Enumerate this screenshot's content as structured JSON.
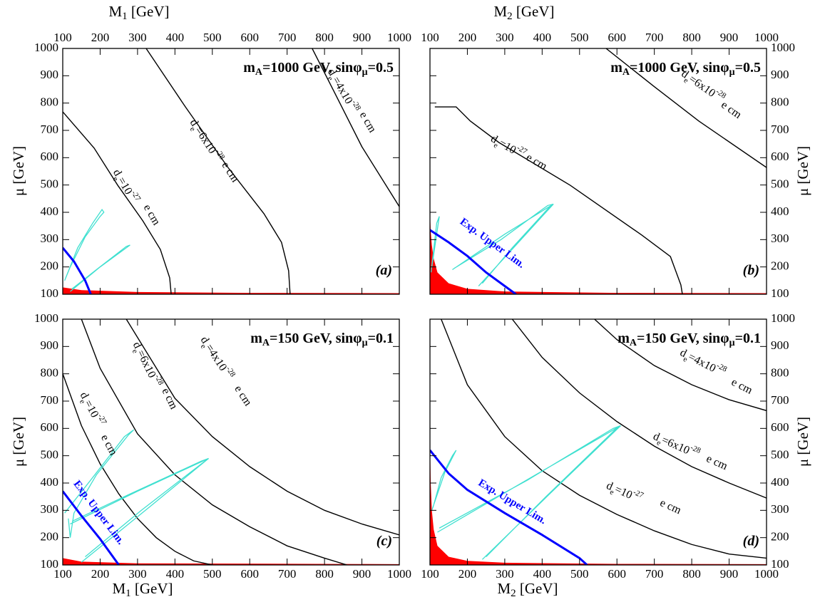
{
  "chart_data": [
    {
      "type": "line",
      "header": [
        "m",
        "A",
        "=1000 GeV, sinφ",
        "μ",
        "=0.5"
      ],
      "tag": "(a)",
      "xlabel": [
        "M",
        "1",
        "  [GeV]"
      ],
      "ylabel": "μ  [GeV]",
      "x_axis": "top",
      "y_axis": "left",
      "xlim": [
        100,
        1000
      ],
      "ylim": [
        100,
        1000
      ],
      "xticks": [
        100,
        200,
        300,
        400,
        500,
        600,
        700,
        800,
        900,
        1000
      ],
      "yticks": [
        100,
        200,
        300,
        400,
        500,
        600,
        700,
        800,
        900,
        1000
      ],
      "series": [
        {
          "color": "#ff0000",
          "fill": true,
          "x": [
            100,
            150,
            300,
            600,
            1000
          ],
          "values": [
            125,
            115,
            108,
            105,
            104
          ]
        },
        {
          "color": "#000000",
          "x": [
            100,
            184,
            247,
            314,
            361,
            386,
            390
          ],
          "values": [
            768,
            635,
            499,
            369,
            264,
            160,
            100
          ]
        },
        {
          "color": "#000000",
          "x": [
            323,
            428,
            542,
            638,
            685,
            704,
            708
          ],
          "values": [
            1000,
            786,
            564,
            395,
            290,
            186,
            100
          ]
        },
        {
          "color": "#000000",
          "x": [
            767,
            830,
            900,
            1000
          ],
          "values": [
            1000,
            830,
            640,
            421
          ]
        },
        {
          "color": "#40e0d0",
          "x": [
            105,
            140,
            180,
            205,
            210,
            200,
            160,
            120,
            105
          ],
          "values": [
            150,
            270,
            360,
            410,
            400,
            385,
            310,
            200,
            150
          ]
        },
        {
          "color": "#40e0d0",
          "x": [
            120,
            200,
            280,
            270,
            190,
            125
          ],
          "values": [
            110,
            200,
            280,
            275,
            190,
            120
          ]
        },
        {
          "color": "#0000ff",
          "x": [
            100,
            130,
            160,
            175
          ],
          "values": [
            270,
            220,
            150,
            100
          ]
        }
      ],
      "annotations": [
        {
          "parts": [
            "d",
            "e",
            "=10",
            "-27",
            "e cm"
          ]
        },
        {
          "parts": [
            "d",
            "e",
            "=6x10",
            "-28",
            "e cm"
          ]
        },
        {
          "parts": [
            "d",
            "e",
            "=4x10",
            "-28",
            "e cm"
          ]
        }
      ]
    },
    {
      "type": "line",
      "header": [
        "m",
        "A",
        "=1000 GeV, sinφ",
        "μ",
        "=0.5"
      ],
      "tag": "(b)",
      "xlabel": [
        "M",
        "2",
        "  [GeV]"
      ],
      "ylabel": "μ  [GeV]",
      "x_axis": "top",
      "y_axis": "right",
      "xlim": [
        100,
        1000
      ],
      "ylim": [
        100,
        1000
      ],
      "xticks": [
        100,
        200,
        300,
        400,
        500,
        600,
        700,
        800,
        900,
        1000
      ],
      "yticks": [
        100,
        200,
        300,
        400,
        500,
        600,
        700,
        800,
        900,
        1000
      ],
      "series": [
        {
          "color": "#ff0000",
          "fill": true,
          "x": [
            100,
            102,
            105,
            110,
            120,
            150,
            200,
            300,
            600,
            1000
          ],
          "values": [
            400,
            330,
            280,
            230,
            180,
            140,
            120,
            110,
            105,
            104
          ]
        },
        {
          "color": "#000000",
          "x": [
            113,
            170,
            208,
            284,
            475,
            666,
            743,
            771,
            775
          ],
          "values": [
            786,
            786,
            734,
            656,
            499,
            317,
            238,
            134,
            100
          ]
        },
        {
          "color": "#000000",
          "x": [
            571,
            700,
            819,
            1000
          ],
          "values": [
            1000,
            860,
            734,
            564
          ]
        },
        {
          "color": "#40e0d0",
          "x": [
            105,
            125,
            118,
            103
          ],
          "values": [
            200,
            385,
            360,
            180
          ]
        },
        {
          "color": "#40e0d0",
          "x": [
            160,
            300,
            430,
            415,
            290,
            165
          ],
          "values": [
            190,
            320,
            430,
            425,
            300,
            195
          ]
        },
        {
          "color": "#40e0d0",
          "x": [
            230,
            330,
            430,
            420,
            320,
            240
          ],
          "values": [
            130,
            280,
            430,
            420,
            270,
            140
          ]
        },
        {
          "color": "#0000ff",
          "name": "Exp. Upper Lim.",
          "x": [
            100,
            150,
            200,
            250,
            300,
            330
          ],
          "values": [
            335,
            290,
            240,
            180,
            130,
            100
          ]
        }
      ],
      "annotations": [
        {
          "parts": [
            "d",
            "e",
            "=10",
            "-27",
            "e cm"
          ]
        },
        {
          "parts": [
            "d",
            "e",
            "=6x10",
            "-28",
            "e cm"
          ]
        }
      ]
    },
    {
      "type": "line",
      "header": [
        "m",
        "A",
        "=150 GeV, sinφ",
        "μ",
        "=0.1"
      ],
      "tag": "(c)",
      "xlabel": [
        "M",
        "1",
        "  [GeV]"
      ],
      "ylabel": "μ  [GeV]",
      "x_axis": "bottom",
      "y_axis": "left",
      "xlim": [
        100,
        1000
      ],
      "ylim": [
        100,
        1000
      ],
      "xticks": [
        100,
        200,
        300,
        400,
        500,
        600,
        700,
        800,
        900,
        1000
      ],
      "yticks": [
        100,
        200,
        300,
        400,
        500,
        600,
        700,
        800,
        900,
        1000
      ],
      "series": [
        {
          "color": "#ff0000",
          "fill": true,
          "x": [
            100,
            150,
            300,
            1000
          ],
          "values": [
            125,
            112,
            106,
            103
          ]
        },
        {
          "color": "#000000",
          "x": [
            100,
            150,
            200,
            250,
            300,
            350,
            400,
            450,
            500
          ],
          "values": [
            800,
            610,
            470,
            360,
            270,
            200,
            150,
            115,
            100
          ]
        },
        {
          "color": "#000000",
          "x": [
            150,
            200,
            300,
            400,
            500,
            600,
            700,
            800,
            860
          ],
          "values": [
            1000,
            820,
            580,
            430,
            320,
            240,
            170,
            125,
            100
          ]
        },
        {
          "color": "#000000",
          "x": [
            270,
            400,
            500,
            600,
            700,
            800,
            900,
            1000
          ],
          "values": [
            1000,
            710,
            570,
            460,
            370,
            300,
            250,
            210
          ]
        },
        {
          "color": "#40e0d0",
          "x": [
            105,
            180,
            265,
            290,
            275,
            190,
            130,
            120,
            115
          ],
          "values": [
            290,
            420,
            570,
            595,
            575,
            430,
            290,
            200,
            270
          ]
        },
        {
          "color": "#40e0d0",
          "x": [
            150,
            330,
            490,
            480,
            310,
            160
          ],
          "values": [
            110,
            310,
            490,
            480,
            300,
            130
          ]
        },
        {
          "color": "#40e0d0",
          "x": [
            120,
            300,
            490,
            470,
            280,
            125
          ],
          "values": [
            250,
            370,
            490,
            480,
            360,
            260
          ]
        },
        {
          "color": "#0000ff",
          "name": "Exp. Upper Lim.",
          "x": [
            100,
            150,
            200,
            250
          ],
          "values": [
            370,
            280,
            195,
            100
          ]
        }
      ],
      "annotations": [
        {
          "parts": [
            "d",
            "e",
            "=10",
            "-27",
            "e cm"
          ]
        },
        {
          "parts": [
            "d",
            "e",
            "=6x10",
            "-28",
            "e cm"
          ]
        },
        {
          "parts": [
            "d",
            "e",
            "=4x10",
            "-28",
            "e cm"
          ]
        }
      ]
    },
    {
      "type": "line",
      "header": [
        "m",
        "A",
        "=150 GeV, sinφ",
        "μ",
        "=0.1"
      ],
      "tag": "(d)",
      "xlabel": [
        "M",
        "2",
        "  [GeV]"
      ],
      "ylabel": "μ  [GeV]",
      "x_axis": "bottom",
      "y_axis": "right",
      "xlim": [
        100,
        1000
      ],
      "ylim": [
        100,
        1000
      ],
      "xticks": [
        100,
        200,
        300,
        400,
        500,
        600,
        700,
        800,
        900,
        1000
      ],
      "yticks": [
        100,
        200,
        300,
        400,
        500,
        600,
        700,
        800,
        900,
        1000
      ],
      "series": [
        {
          "color": "#ff0000",
          "fill": true,
          "x": [
            100,
            102,
            105,
            110,
            120,
            150,
            200,
            300,
            600,
            1000
          ],
          "values": [
            560,
            400,
            300,
            230,
            170,
            130,
            115,
            108,
            104,
            103
          ]
        },
        {
          "color": "#000000",
          "x": [
            130,
            200,
            300,
            400,
            500,
            600,
            700,
            800,
            900,
            1000
          ],
          "values": [
            1000,
            760,
            570,
            445,
            355,
            285,
            225,
            175,
            140,
            125
          ]
        },
        {
          "color": "#000000",
          "x": [
            320,
            400,
            500,
            600,
            700,
            800,
            900,
            1000
          ],
          "values": [
            1000,
            860,
            730,
            625,
            535,
            460,
            400,
            345
          ]
        },
        {
          "color": "#000000",
          "x": [
            540,
            600,
            700,
            800,
            900,
            1000
          ],
          "values": [
            1000,
            925,
            830,
            760,
            705,
            665
          ]
        },
        {
          "color": "#40e0d0",
          "x": [
            105,
            140,
            170,
            160,
            130,
            108
          ],
          "values": [
            300,
            440,
            520,
            500,
            420,
            310
          ]
        },
        {
          "color": "#40e0d0",
          "x": [
            120,
            370,
            610,
            590,
            360,
            125
          ],
          "values": [
            220,
            420,
            610,
            600,
            410,
            235
          ]
        },
        {
          "color": "#40e0d0",
          "x": [
            240,
            420,
            610,
            595,
            410,
            250
          ],
          "values": [
            120,
            360,
            610,
            595,
            350,
            130
          ]
        },
        {
          "color": "#0000ff",
          "name": "Exp. Upper Lim.",
          "x": [
            100,
            150,
            200,
            300,
            400,
            500,
            520
          ],
          "values": [
            520,
            435,
            375,
            290,
            210,
            125,
            100
          ]
        }
      ],
      "annotations": [
        {
          "parts": [
            "d",
            "e",
            "=10",
            "-27",
            "e cm"
          ]
        },
        {
          "parts": [
            "d",
            "e",
            "=6x10",
            "-28",
            "e cm"
          ]
        },
        {
          "parts": [
            "d",
            "e",
            "=4x10",
            "-28",
            "e cm"
          ]
        }
      ]
    }
  ]
}
